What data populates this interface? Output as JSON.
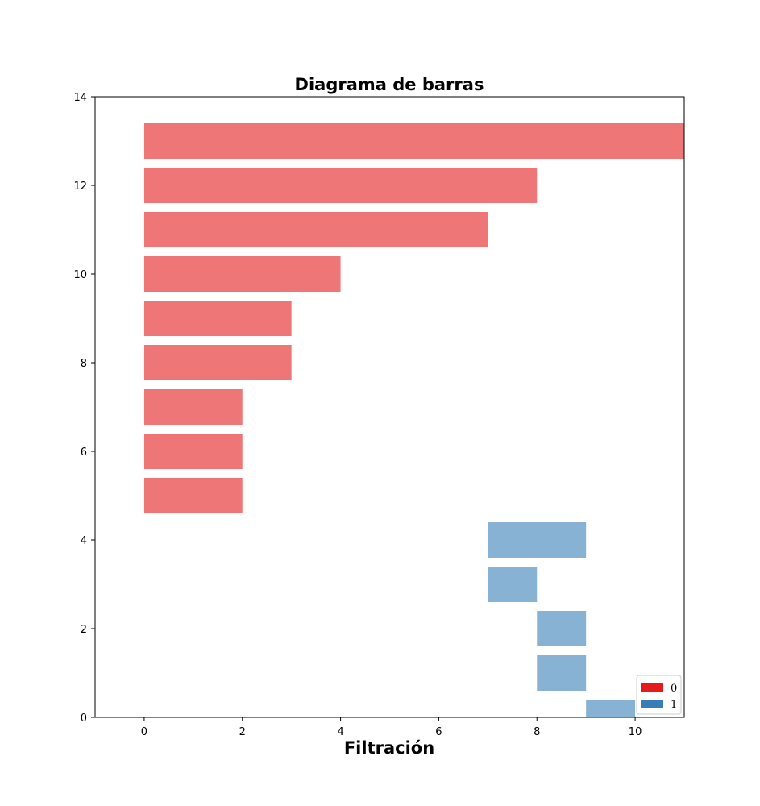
{
  "chart_data": {
    "type": "bar",
    "orientation": "horizontal",
    "title": "Diagrama de barras",
    "xlabel": "Filtración",
    "ylabel": "",
    "xlim": [
      -1,
      11
    ],
    "ylim": [
      0,
      14
    ],
    "xticks": [
      0,
      2,
      4,
      6,
      8,
      10
    ],
    "yticks": [
      0,
      2,
      4,
      6,
      8,
      10,
      12,
      14
    ],
    "bar_height": 0.8,
    "grid": false,
    "legend_position": "bottom-right",
    "series": [
      {
        "name": "0",
        "color": "#e41a1c",
        "opacity": 0.6,
        "bars": [
          {
            "y": 5,
            "start": 0,
            "end": 2
          },
          {
            "y": 6,
            "start": 0,
            "end": 2
          },
          {
            "y": 7,
            "start": 0,
            "end": 2
          },
          {
            "y": 8,
            "start": 0,
            "end": 3
          },
          {
            "y": 9,
            "start": 0,
            "end": 3
          },
          {
            "y": 10,
            "start": 0,
            "end": 4
          },
          {
            "y": 11,
            "start": 0,
            "end": 7
          },
          {
            "y": 12,
            "start": 0,
            "end": 8
          },
          {
            "y": 13,
            "start": 0,
            "end": 11
          }
        ]
      },
      {
        "name": "1",
        "color": "#377eb8",
        "opacity": 0.6,
        "bars": [
          {
            "y": 0,
            "start": 9,
            "end": 10
          },
          {
            "y": 1,
            "start": 8,
            "end": 9
          },
          {
            "y": 2,
            "start": 8,
            "end": 9
          },
          {
            "y": 3,
            "start": 7,
            "end": 8
          },
          {
            "y": 4,
            "start": 7,
            "end": 9
          }
        ]
      }
    ]
  }
}
